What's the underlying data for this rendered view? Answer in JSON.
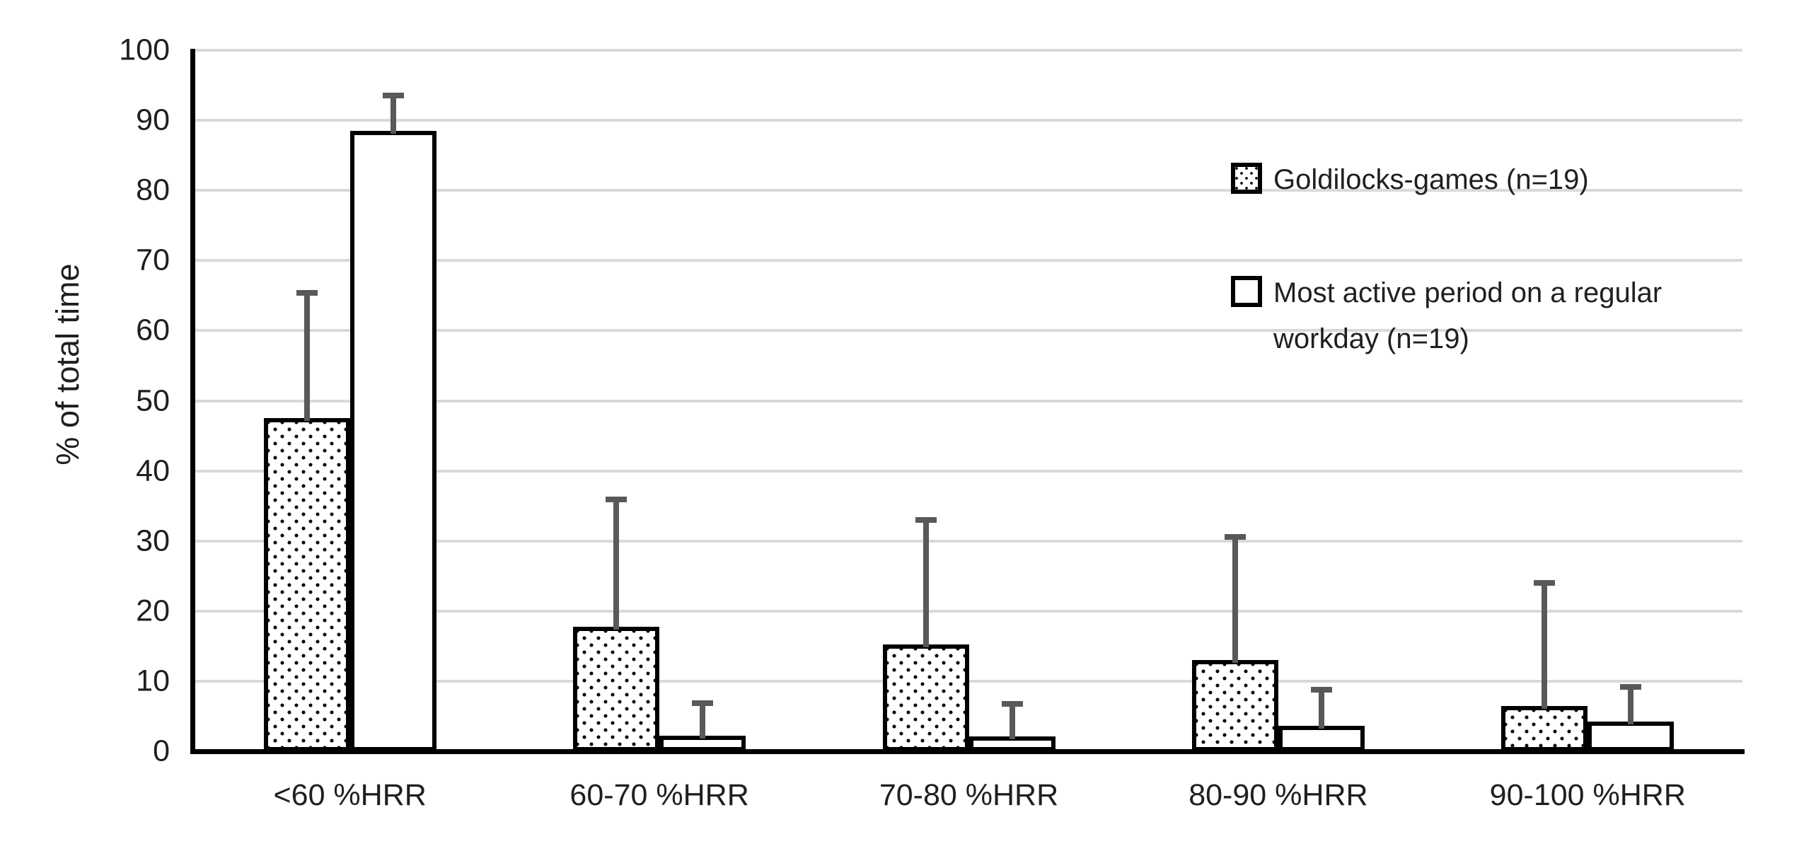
{
  "colors": {
    "background": "#ffffff",
    "bar_fill": "#ffffff",
    "bar_border": "#000000",
    "pattern_dot": "#000000",
    "error_bar": "#595959",
    "gridline": "#d9d9d9",
    "text": "#1f1f1f"
  },
  "chart_data": {
    "type": "bar",
    "title": "",
    "xlabel": "",
    "ylabel": "% of total time",
    "ylim": [
      0,
      100
    ],
    "yticks": [
      0,
      10,
      20,
      30,
      40,
      50,
      60,
      70,
      80,
      90,
      100
    ],
    "grid": true,
    "legend_position": "upper right",
    "categories": [
      "<60 %HRR",
      "60-70 %HRR",
      "70-80 %HRR",
      "80-90 %HRR",
      "90-100 %HRR"
    ],
    "series": [
      {
        "name": "Goldilocks-games (n=19)",
        "pattern": "dotted",
        "values": [
          47.5,
          17.8,
          15.2,
          13.0,
          6.5
        ],
        "error_upper": [
          18.3,
          18.5,
          18.2,
          18.0,
          17.9
        ]
      },
      {
        "name": "Most active period on a regular workday (n=19)",
        "pattern": "plain-white",
        "values": [
          88.5,
          2.2,
          2.1,
          3.6,
          4.2
        ],
        "error_upper": [
          5.4,
          5.1,
          5.1,
          5.6,
          5.4
        ]
      }
    ]
  }
}
